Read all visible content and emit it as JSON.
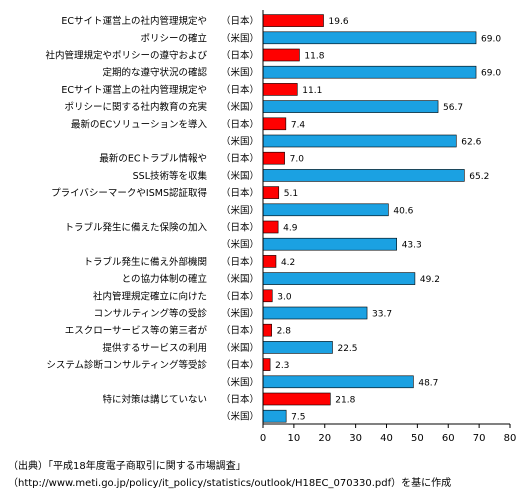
{
  "chart_data": {
    "type": "bar",
    "orientation": "horizontal",
    "colors": {
      "japan": "#ff0000",
      "usa": "#1ba1e2"
    },
    "xlim": [
      0,
      80
    ],
    "xticks": [
      "0",
      "10",
      "20",
      "30",
      "40",
      "50",
      "60",
      "70",
      "80"
    ],
    "grid": false,
    "rows": [
      {
        "label": "ECサイト運営上の社内管理規定や",
        "country": "（日本）",
        "value": 19.6,
        "group": "japan",
        "value_text": "19.6"
      },
      {
        "label": "ポリシーの確立",
        "country": "（米国）",
        "value": 69.0,
        "group": "usa",
        "value_text": "69.0"
      },
      {
        "label": "社内管理規定やポリシーの遵守および",
        "country": "（日本）",
        "value": 11.8,
        "group": "japan",
        "value_text": "11.8"
      },
      {
        "label": "定期的な遵守状況の確認",
        "country": "（米国）",
        "value": 69.0,
        "group": "usa",
        "value_text": "69.0"
      },
      {
        "label": "ECサイト運営上の社内管理規定や",
        "country": "（日本）",
        "value": 11.1,
        "group": "japan",
        "value_text": "11.1"
      },
      {
        "label": "ポリシーに関する社内教育の充実",
        "country": "（米国）",
        "value": 56.7,
        "group": "usa",
        "value_text": "56.7"
      },
      {
        "label": "最新のECソリューションを導入",
        "country": "（日本）",
        "value": 7.4,
        "group": "japan",
        "value_text": "7.4"
      },
      {
        "label": "",
        "country": "（米国）",
        "value": 62.6,
        "group": "usa",
        "value_text": "62.6"
      },
      {
        "label": "最新のECトラブル情報や",
        "country": "（日本）",
        "value": 7.0,
        "group": "japan",
        "value_text": "7.0"
      },
      {
        "label": "SSL技術等を収集",
        "country": "（米国）",
        "value": 65.2,
        "group": "usa",
        "value_text": "65.2"
      },
      {
        "label": "プライバシーマークやISMS認証取得",
        "country": "（日本）",
        "value": 5.1,
        "group": "japan",
        "value_text": "5.1"
      },
      {
        "label": "",
        "country": "（米国）",
        "value": 40.6,
        "group": "usa",
        "value_text": "40.6"
      },
      {
        "label": "トラブル発生に備えた保険の加入",
        "country": "（日本）",
        "value": 4.9,
        "group": "japan",
        "value_text": "4.9"
      },
      {
        "label": "",
        "country": "（米国）",
        "value": 43.3,
        "group": "usa",
        "value_text": "43.3"
      },
      {
        "label": "トラブル発生に備え外部機関",
        "country": "（日本）",
        "value": 4.2,
        "group": "japan",
        "value_text": "4.2"
      },
      {
        "label": "との協力体制の確立",
        "country": "（米国）",
        "value": 49.2,
        "group": "usa",
        "value_text": "49.2"
      },
      {
        "label": "社内管理規定確立に向けた",
        "country": "（日本）",
        "value": 3.0,
        "group": "japan",
        "value_text": "3.0"
      },
      {
        "label": "コンサルティング等の受診",
        "country": "（米国）",
        "value": 33.7,
        "group": "usa",
        "value_text": "33.7"
      },
      {
        "label": "エスクローサービス等の第三者が",
        "country": "（日本）",
        "value": 2.8,
        "group": "japan",
        "value_text": "2.8"
      },
      {
        "label": "提供するサービスの利用",
        "country": "（米国）",
        "value": 22.5,
        "group": "usa",
        "value_text": "22.5"
      },
      {
        "label": "システム診断コンサルティング等受診",
        "country": "（日本）",
        "value": 2.3,
        "group": "japan",
        "value_text": "2.3"
      },
      {
        "label": "",
        "country": "（米国）",
        "value": 48.7,
        "group": "usa",
        "value_text": "48.7"
      },
      {
        "label": "特に対策は講じていない",
        "country": "（日本）",
        "value": 21.8,
        "group": "japan",
        "value_text": "21.8"
      },
      {
        "label": "",
        "country": "（米国）",
        "value": 7.5,
        "group": "usa",
        "value_text": "7.5"
      }
    ]
  },
  "source": {
    "line1": "（出典）「平成18年度電子商取引に関する市場調査」",
    "line2": "（http://www.meti.go.jp/policy/it_policy/statistics/outlook/H18EC_070330.pdf）を基に作成"
  }
}
